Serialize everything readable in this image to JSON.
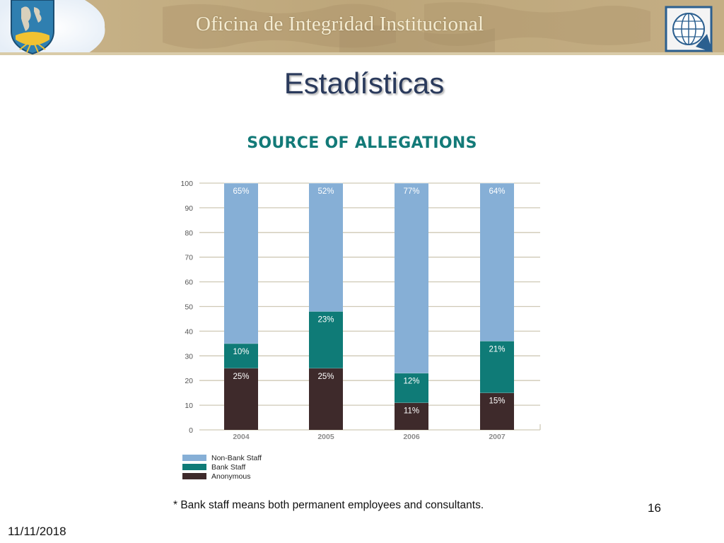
{
  "header": {
    "title": "Oficina de Integridad Institucional",
    "left_logo": "institution-emblem-icon",
    "right_logo": "globe-grid-icon"
  },
  "slide": {
    "title": "Estadísticas",
    "footnote": "* Bank staff means both permanent employees and consultants.",
    "page_number": "16",
    "date": "11/11/2018"
  },
  "colors": {
    "non_bank_staff": "#86afd6",
    "bank_staff": "#0f7b77",
    "anonymous": "#3e2a2b",
    "chart_title": "#137a78",
    "slide_title": "#2a3a5c",
    "grid": "#cfc9b6"
  },
  "chart_data": {
    "type": "bar",
    "stacked": true,
    "title": "SOURCE OF ALLEGATIONS",
    "xlabel": "",
    "ylabel": "",
    "categories": [
      "2004",
      "2005",
      "2006",
      "2007"
    ],
    "ylim": [
      0,
      100
    ],
    "yticks": [
      0,
      10,
      20,
      30,
      40,
      50,
      60,
      70,
      80,
      90,
      100
    ],
    "grid": true,
    "legend_position": "bottom-left",
    "series": [
      {
        "name": "Anonymous",
        "values": [
          25,
          25,
          11,
          15
        ],
        "labels": [
          "25%",
          "25%",
          "11%",
          "15%"
        ]
      },
      {
        "name": "Bank Staff",
        "values": [
          10,
          23,
          12,
          21
        ],
        "labels": [
          "10%",
          "23%",
          "12%",
          "21%"
        ]
      },
      {
        "name": "Non-Bank Staff",
        "values": [
          65,
          52,
          77,
          64
        ],
        "labels": [
          "65%",
          "52%",
          "77%",
          "64%"
        ]
      }
    ],
    "legend": [
      "Non-Bank Staff",
      "Bank Staff",
      "Anonymous"
    ]
  }
}
